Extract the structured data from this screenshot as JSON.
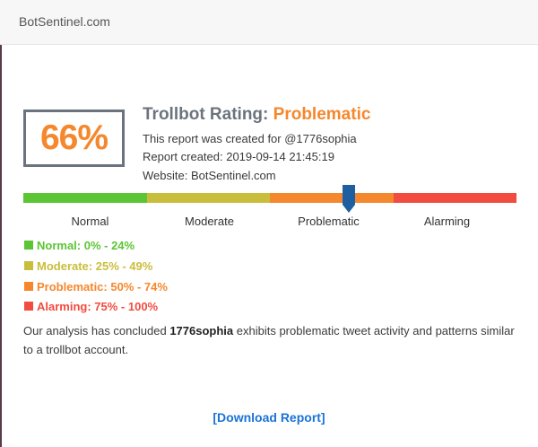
{
  "header": {
    "brand": "BotSentinel.com"
  },
  "score": {
    "percent": "66%"
  },
  "rating": {
    "title_prefix": "Trollbot Rating:",
    "label": "Problematic",
    "created_for": "This report was created for @1776sophia",
    "report_created": "Report created: 2019-09-14 21:45:19",
    "website": "Website: BotSentinel.com"
  },
  "meter": {
    "value_percent": 66,
    "segments": [
      {
        "label": "Normal",
        "color": "#5cc534"
      },
      {
        "label": "Moderate",
        "color": "#c9be3c"
      },
      {
        "label": "Problematic",
        "color": "#f5872c"
      },
      {
        "label": "Alarming",
        "color": "#f24b3f"
      }
    ],
    "pointer_color": "#1d5fa0"
  },
  "legend": [
    {
      "text": "Normal: 0% - 24%",
      "color": "#5cc534"
    },
    {
      "text": "Moderate: 25% - 49%",
      "color": "#c9be3c"
    },
    {
      "text": "Problematic: 50% - 74%",
      "color": "#f5872c"
    },
    {
      "text": "Alarming: 75% - 100%",
      "color": "#f24b3f"
    }
  ],
  "conclusion": {
    "prefix": "Our analysis has concluded ",
    "account": "1776sophia",
    "suffix": " exhibits problematic tweet activity and patterns similar to a trollbot account."
  },
  "download": {
    "label": "[Download Report]"
  }
}
